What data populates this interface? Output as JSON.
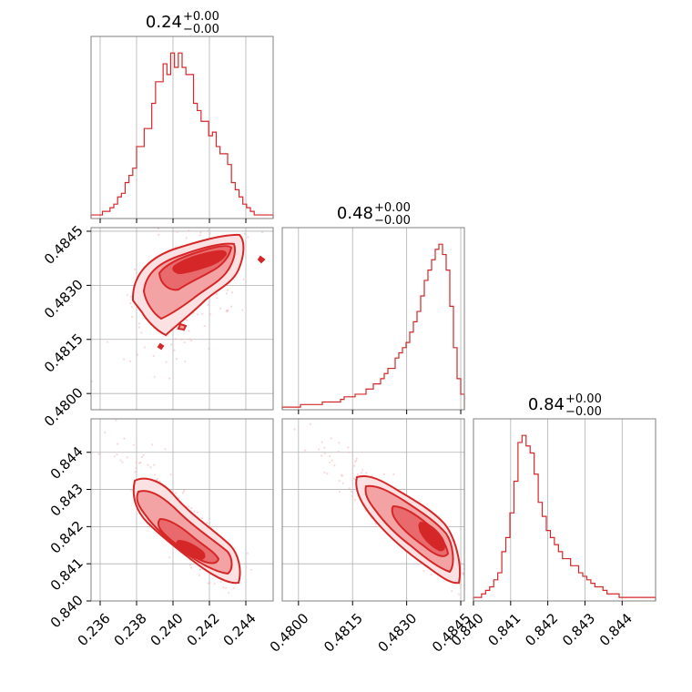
{
  "chart_data": {
    "type": "corner",
    "color": "#d62728",
    "grid": true,
    "parameters": [
      {
        "title_value": "0.24",
        "title_plus": "+0.00",
        "title_minus": "−0.00",
        "range": [
          0.2355,
          0.2455
        ],
        "ticks": [
          0.236,
          0.238,
          0.24,
          0.242,
          0.244
        ],
        "tick_labels": [
          "0.236",
          "0.238",
          "0.240",
          "0.242",
          "0.244"
        ]
      },
      {
        "title_value": "0.48",
        "title_plus": "+0.00",
        "title_minus": "−0.00",
        "range": [
          0.47955,
          0.4846
        ],
        "ticks": [
          0.48,
          0.4815,
          0.483,
          0.4845
        ],
        "tick_labels": [
          "0.4800",
          "0.4815",
          "0.4830",
          "0.4845"
        ]
      },
      {
        "title_value": "0.84",
        "title_plus": "+0.00",
        "title_minus": "−0.00",
        "range": [
          0.84,
          0.8449
        ],
        "ticks": [
          0.84,
          0.841,
          0.842,
          0.843,
          0.844
        ],
        "tick_labels": [
          "0.840",
          "0.841",
          "0.842",
          "0.843",
          "0.844"
        ]
      }
    ],
    "histograms": [
      {
        "param": 0,
        "counts": [
          1,
          1,
          1,
          2,
          2,
          3,
          4,
          6,
          7,
          10,
          12,
          14,
          20,
          20,
          25,
          25,
          32,
          38,
          38,
          43,
          40,
          46,
          42,
          46,
          42,
          40,
          40,
          32,
          30,
          27,
          27,
          23,
          24,
          20,
          18,
          18,
          15,
          10,
          8,
          6,
          4,
          3,
          2,
          1,
          1,
          1,
          1,
          1
        ]
      },
      {
        "param": 1,
        "counts": [
          1,
          1,
          1,
          1,
          1,
          2,
          2,
          2,
          2,
          2,
          2,
          3,
          3,
          3,
          3,
          3,
          4,
          5,
          5,
          5,
          6,
          6,
          6,
          8,
          8,
          10,
          10,
          12,
          14,
          16,
          16,
          20,
          22,
          24,
          26,
          30,
          34,
          38,
          44,
          50,
          54,
          58,
          62,
          64,
          60,
          54,
          40,
          24,
          12,
          6
        ]
      },
      {
        "param": 2,
        "counts": [
          1,
          1,
          2,
          3,
          4,
          6,
          8,
          14,
          18,
          25,
          34,
          45,
          47,
          44,
          42,
          36,
          28,
          24,
          20,
          18,
          16,
          14,
          12,
          12,
          10,
          10,
          8,
          7,
          6,
          5,
          4,
          4,
          3,
          2,
          2,
          2,
          1,
          1,
          1,
          1,
          1,
          1,
          1,
          1,
          1
        ]
      }
    ],
    "pairs": [
      {
        "x_param": 0,
        "y_param": 1
      },
      {
        "x_param": 0,
        "y_param": 2
      },
      {
        "x_param": 1,
        "y_param": 2
      }
    ]
  }
}
